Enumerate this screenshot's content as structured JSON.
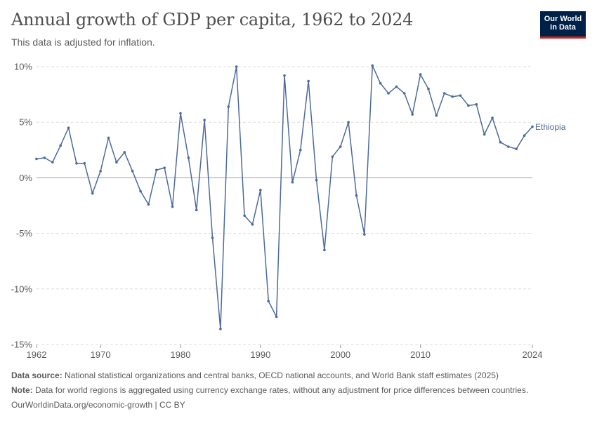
{
  "header": {
    "title": "Annual growth of GDP per capita, 1962 to 2024",
    "subtitle": "This data is adjusted for inflation.",
    "logo_line1": "Our World",
    "logo_line2": "in Data"
  },
  "footer": {
    "source_label": "Data source:",
    "source_text": " National statistical organizations and central banks, OECD national accounts, and World Bank staff estimates (2025)",
    "note_label": "Note:",
    "note_text": " Data for world regions is aggregated using currency exchange rates, without any adjustment for price differences between countries.",
    "url": "OurWorldinData.org/economic-growth | CC BY"
  },
  "colors": {
    "series": "#4c6a9c",
    "grid": "#dddddd",
    "zero": "#a1a1a1",
    "text": "#5b5b5b",
    "brand": "#002147",
    "brand_accent": "#ce261e"
  },
  "chart_data": {
    "type": "line",
    "title": "Annual growth of GDP per capita, 1962 to 2024",
    "subtitle": "This data is adjusted for inflation.",
    "xlim": [
      1962,
      2024
    ],
    "ylim": [
      -15,
      10
    ],
    "y_ticks": [
      -15,
      -10,
      -5,
      0,
      5,
      10
    ],
    "y_tick_labels": [
      "-15%",
      "-10%",
      "-5%",
      "0%",
      "5%",
      "10%"
    ],
    "x_ticks": [
      1962,
      1970,
      1980,
      1990,
      2000,
      2010,
      2024
    ],
    "x_tick_labels": [
      "1962",
      "1970",
      "1980",
      "1990",
      "2000",
      "2010",
      "2024"
    ],
    "grid": "horizontal dashed",
    "series": [
      {
        "name": "Ethiopia",
        "x": [
          1962,
          1963,
          1964,
          1965,
          1966,
          1967,
          1968,
          1969,
          1970,
          1971,
          1972,
          1973,
          1974,
          1975,
          1976,
          1977,
          1978,
          1979,
          1980,
          1981,
          1982,
          1983,
          1984,
          1985,
          1986,
          1987,
          1988,
          1989,
          1990,
          1991,
          1992,
          1993,
          1994,
          1995,
          1996,
          1997,
          1998,
          1999,
          2000,
          2001,
          2002,
          2003,
          2004,
          2005,
          2006,
          2007,
          2008,
          2009,
          2010,
          2011,
          2012,
          2013,
          2014,
          2015,
          2016,
          2017,
          2018,
          2019,
          2020,
          2021,
          2022,
          2023,
          2024
        ],
        "y": [
          1.7,
          1.8,
          1.4,
          2.9,
          4.5,
          1.3,
          1.3,
          -1.4,
          0.6,
          3.6,
          1.4,
          2.3,
          0.6,
          -1.2,
          -2.4,
          0.7,
          0.9,
          -2.6,
          5.8,
          1.8,
          -2.9,
          5.2,
          -5.4,
          -13.6,
          6.4,
          10.0,
          -3.4,
          -4.2,
          -1.1,
          -11.1,
          -12.5,
          9.2,
          -0.4,
          2.5,
          8.7,
          -0.2,
          -6.5,
          1.9,
          2.8,
          5.0,
          -1.6,
          -5.1,
          10.1,
          8.5,
          7.6,
          8.2,
          7.6,
          5.7,
          9.3,
          8.0,
          5.6,
          7.6,
          7.3,
          7.4,
          6.5,
          6.6,
          3.9,
          5.4,
          3.2,
          2.8,
          2.6,
          3.8,
          4.6
        ]
      }
    ]
  }
}
